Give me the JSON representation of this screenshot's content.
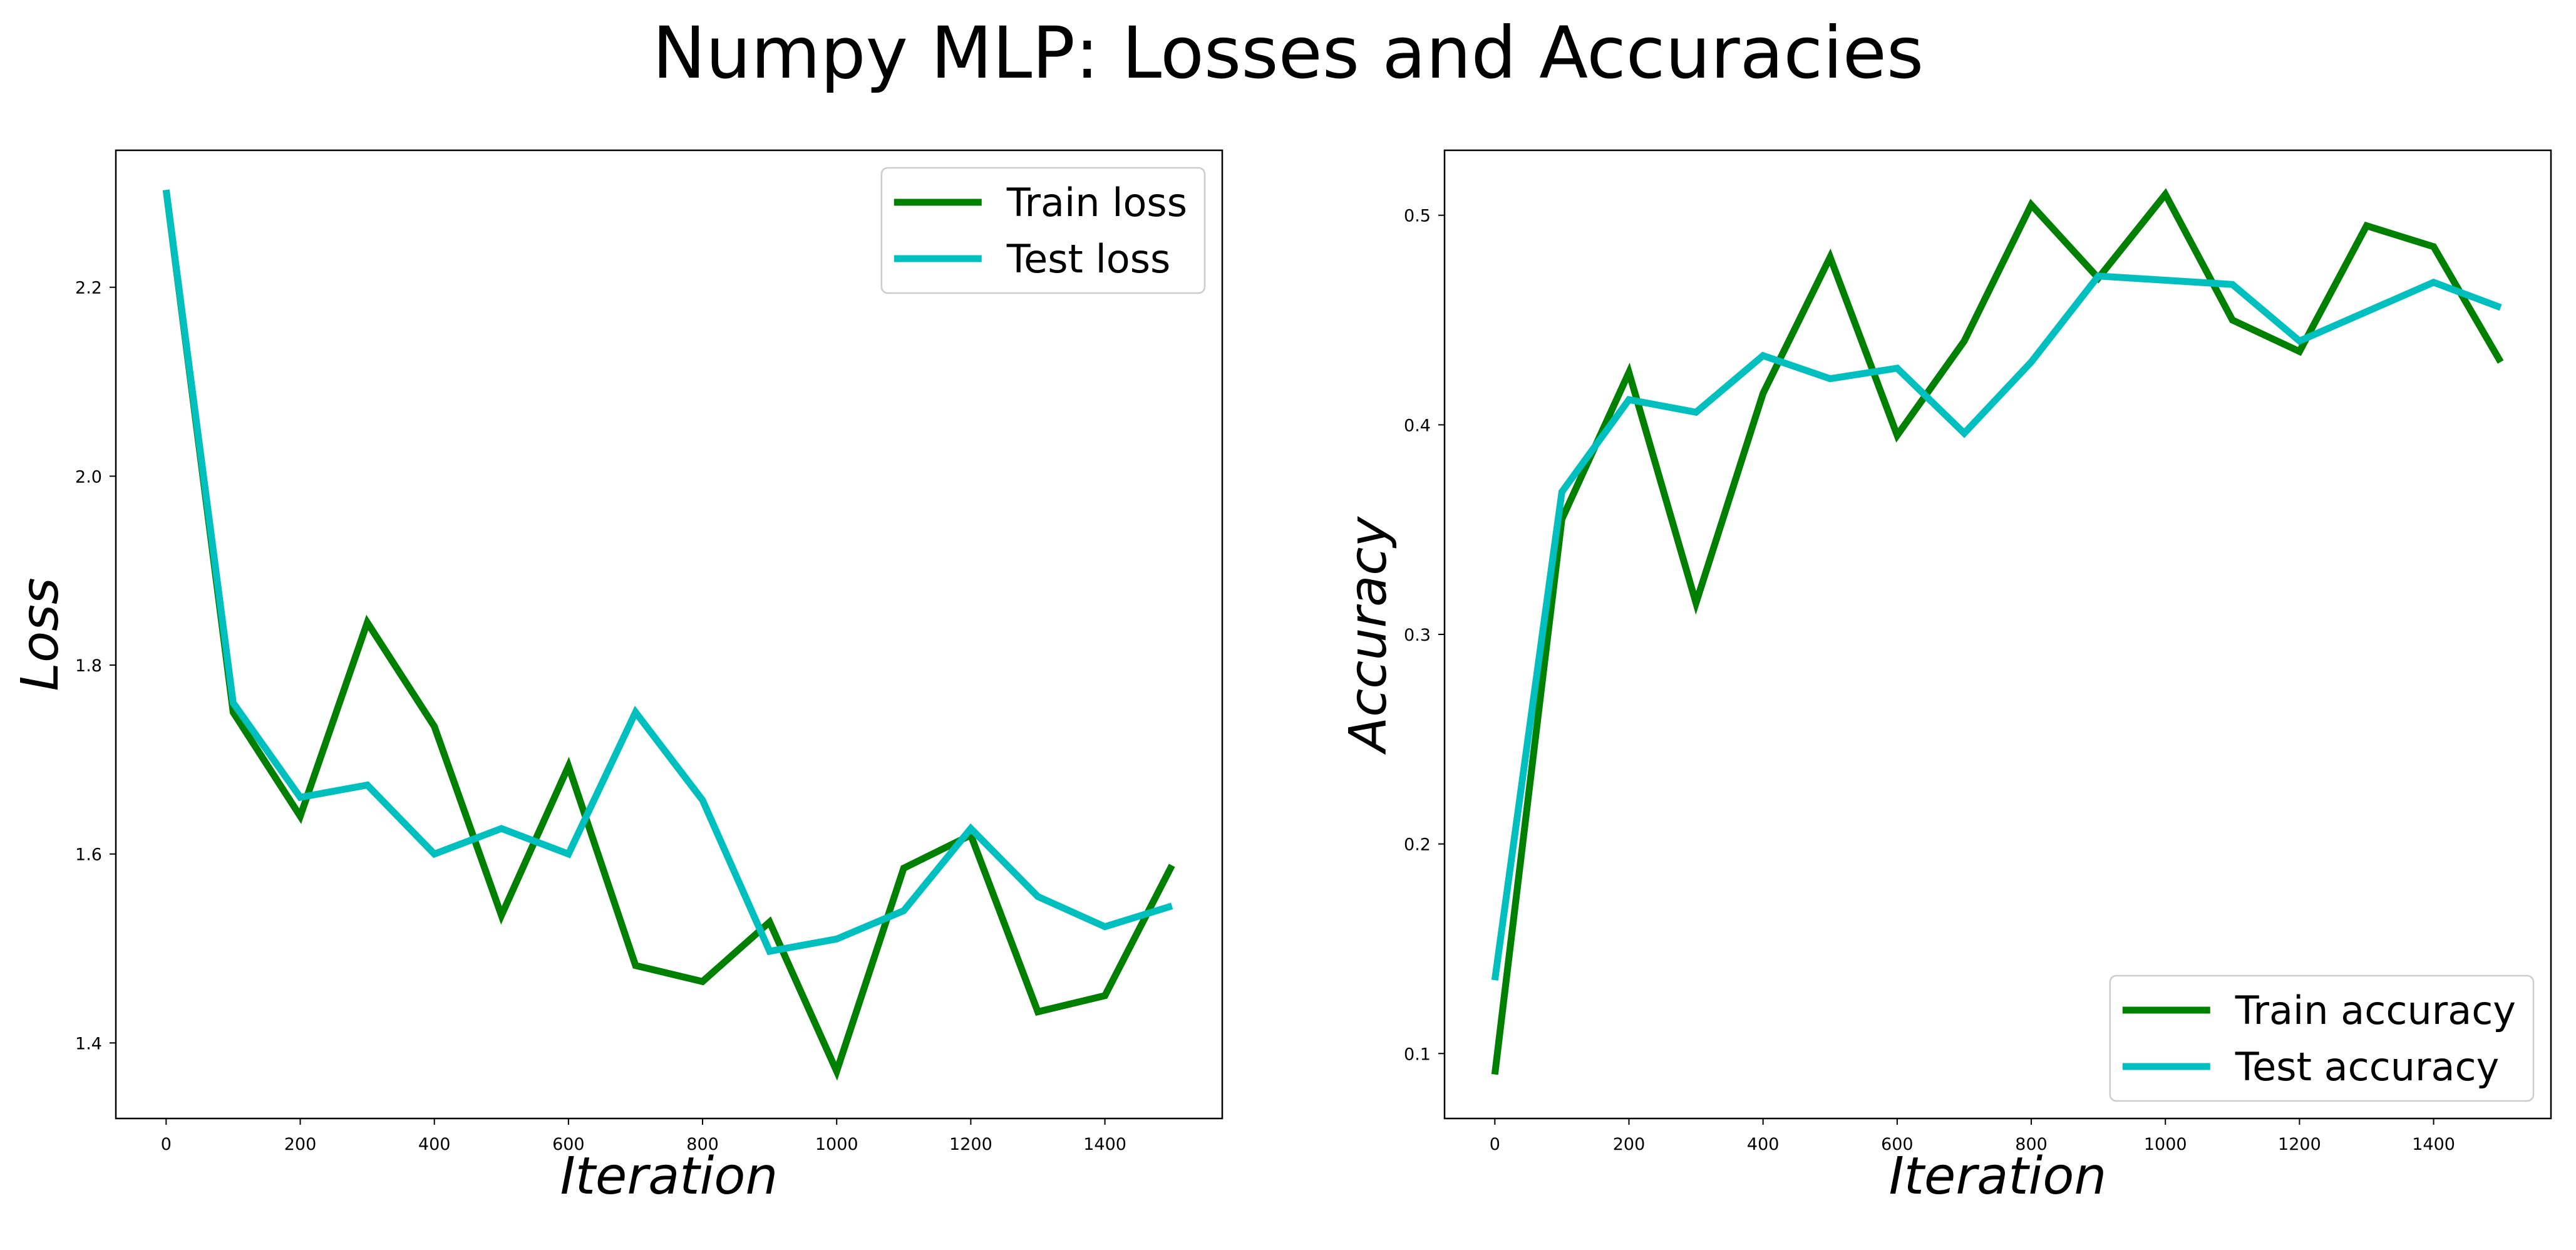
{
  "title": "Numpy MLP: Losses and Accuracies",
  "colors": {
    "train": "#008000",
    "test": "#00bfbf"
  },
  "chart_data": [
    {
      "type": "line",
      "xlabel": "Iteration",
      "ylabel": "Loss",
      "xlim": [
        -75,
        1575
      ],
      "ylim": [
        1.32,
        2.345
      ],
      "xticks": [
        0,
        200,
        400,
        600,
        800,
        1000,
        1200,
        1400
      ],
      "xtick_labels": [
        "0",
        "200",
        "400",
        "600",
        "800",
        "1000",
        "1200",
        "1400"
      ],
      "yticks": [
        1.4,
        1.6,
        1.8,
        2.0,
        2.2
      ],
      "ytick_labels": [
        "1.4",
        "1.6",
        "1.8",
        "2.0",
        "2.2"
      ],
      "legend_position": "upper right",
      "x": [
        0,
        100,
        200,
        300,
        400,
        500,
        600,
        700,
        800,
        900,
        1000,
        1100,
        1200,
        1300,
        1400,
        1500
      ],
      "series": [
        {
          "name": "Train loss",
          "color_key": "train",
          "values": [
            2.303,
            1.75,
            1.64,
            1.845,
            1.735,
            1.535,
            1.693,
            1.482,
            1.465,
            1.528,
            1.37,
            1.585,
            1.62,
            1.433,
            1.45,
            1.588
          ]
        },
        {
          "name": "Test loss",
          "color_key": "test",
          "values": [
            2.303,
            1.76,
            1.66,
            1.673,
            1.6,
            1.627,
            1.6,
            1.75,
            1.657,
            1.497,
            1.51,
            1.54,
            1.627,
            1.555,
            1.523,
            1.545
          ]
        }
      ]
    },
    {
      "type": "line",
      "xlabel": "Iteration",
      "ylabel": "Accuracy",
      "xlim": [
        -75,
        1575
      ],
      "ylim": [
        0.069,
        0.531
      ],
      "xticks": [
        0,
        200,
        400,
        600,
        800,
        1000,
        1200,
        1400
      ],
      "xtick_labels": [
        "0",
        "200",
        "400",
        "600",
        "800",
        "1000",
        "1200",
        "1400"
      ],
      "yticks": [
        0.1,
        0.2,
        0.3,
        0.4,
        0.5
      ],
      "ytick_labels": [
        "0.1",
        "0.2",
        "0.3",
        "0.4",
        "0.5"
      ],
      "legend_position": "lower right",
      "x": [
        0,
        100,
        200,
        300,
        400,
        500,
        600,
        700,
        800,
        900,
        1000,
        1100,
        1200,
        1300,
        1400,
        1500
      ],
      "series": [
        {
          "name": "Train accuracy",
          "color_key": "train",
          "values": [
            0.09,
            0.355,
            0.425,
            0.315,
            0.415,
            0.48,
            0.395,
            0.44,
            0.505,
            0.47,
            0.51,
            0.45,
            0.435,
            0.495,
            0.485,
            0.43
          ]
        },
        {
          "name": "Test accuracy",
          "color_key": "test",
          "values": [
            0.135,
            0.368,
            0.412,
            0.406,
            0.433,
            0.422,
            0.427,
            0.396,
            0.43,
            0.471,
            0.469,
            0.467,
            0.44,
            0.454,
            0.468,
            0.456
          ]
        }
      ]
    }
  ]
}
